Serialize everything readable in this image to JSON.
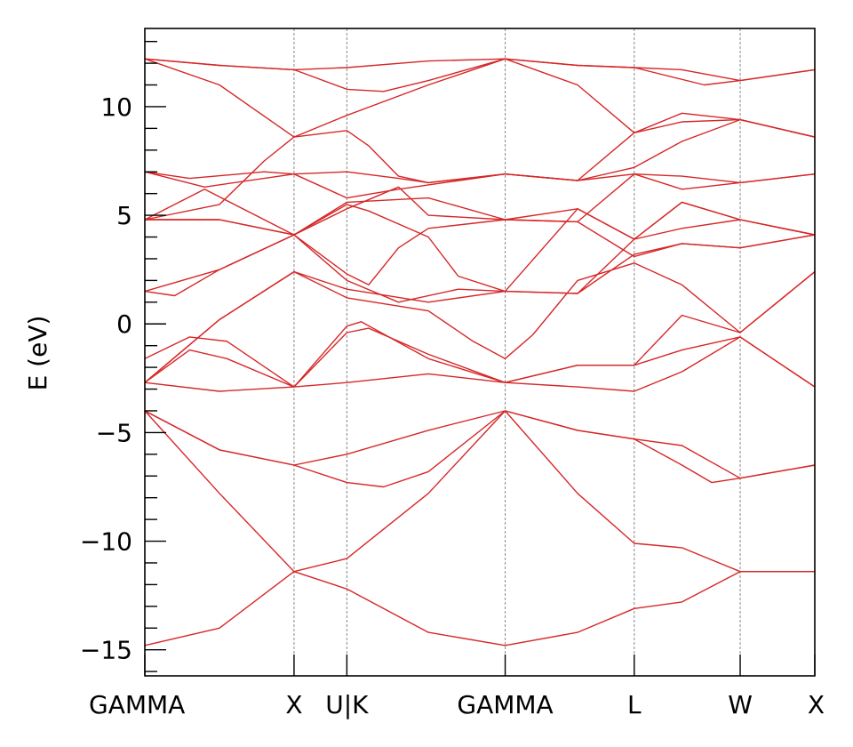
{
  "chart_data": {
    "type": "line",
    "title": "",
    "xlabel": "",
    "ylabel": "E (eV)",
    "ylim": [
      -16.2,
      13.6
    ],
    "grid": false,
    "legend": "none",
    "line_color": "#d62728",
    "kpath": [
      "GAMMA",
      "X",
      "U|K",
      "GAMMA",
      "L",
      "W",
      "X"
    ],
    "kpath_positions": [
      0,
      1,
      1.354,
      2.415,
      3.28,
      3.99,
      4.49
    ],
    "yticks_major": [
      -15,
      -10,
      -5,
      0,
      5,
      10
    ],
    "ytick_labels": [
      "−15",
      "−10",
      "−5",
      "0",
      "5",
      "10"
    ],
    "bands": [
      {
        "name": "band-1",
        "points": [
          [
            0,
            -14.8
          ],
          [
            0.5,
            -14.0
          ],
          [
            1.0,
            -11.4
          ],
          [
            1.354,
            -12.2
          ],
          [
            1.9,
            -14.2
          ],
          [
            2.415,
            -14.8
          ],
          [
            2.9,
            -14.2
          ],
          [
            3.28,
            -13.1
          ],
          [
            3.6,
            -12.8
          ],
          [
            3.99,
            -11.4
          ],
          [
            4.49,
            -11.4
          ]
        ]
      },
      {
        "name": "band-2",
        "points": [
          [
            0,
            -4.0
          ],
          [
            0.5,
            -7.8
          ],
          [
            1.0,
            -11.4
          ],
          [
            1.354,
            -10.8
          ],
          [
            1.9,
            -7.8
          ],
          [
            2.415,
            -4.0
          ],
          [
            2.9,
            -7.8
          ],
          [
            3.28,
            -10.1
          ],
          [
            3.6,
            -10.3
          ],
          [
            3.99,
            -11.4
          ],
          [
            4.49,
            -11.4
          ]
        ]
      },
      {
        "name": "band-3",
        "points": [
          [
            0,
            -4.0
          ],
          [
            0.5,
            -5.8
          ],
          [
            1.0,
            -6.5
          ],
          [
            1.354,
            -6.0
          ],
          [
            1.9,
            -4.9
          ],
          [
            2.415,
            -4.0
          ],
          [
            2.9,
            -4.9
          ],
          [
            3.28,
            -5.3
          ],
          [
            3.6,
            -5.6
          ],
          [
            3.99,
            -7.1
          ],
          [
            4.49,
            -6.5
          ]
        ]
      },
      {
        "name": "band-4",
        "points": [
          [
            0,
            -4.0
          ],
          [
            0.5,
            -5.8
          ],
          [
            1.0,
            -6.5
          ],
          [
            1.354,
            -7.3
          ],
          [
            1.6,
            -7.5
          ],
          [
            1.9,
            -6.8
          ],
          [
            2.415,
            -4.0
          ],
          [
            2.9,
            -4.9
          ],
          [
            3.28,
            -5.3
          ],
          [
            3.6,
            -6.5
          ],
          [
            3.8,
            -7.3
          ],
          [
            3.99,
            -7.1
          ],
          [
            4.49,
            -6.5
          ]
        ]
      },
      {
        "name": "band-5",
        "points": [
          [
            0,
            -2.7
          ],
          [
            0.5,
            -3.1
          ],
          [
            1.0,
            -2.9
          ],
          [
            1.354,
            -2.7
          ],
          [
            1.9,
            -2.3
          ],
          [
            2.415,
            -2.7
          ],
          [
            2.9,
            -2.9
          ],
          [
            3.28,
            -3.1
          ],
          [
            3.6,
            -2.2
          ],
          [
            3.99,
            -0.6
          ],
          [
            4.49,
            -2.9
          ]
        ]
      },
      {
        "name": "band-6",
        "points": [
          [
            0,
            -2.7
          ],
          [
            0.3,
            -1.2
          ],
          [
            0.55,
            -1.6
          ],
          [
            1.0,
            -2.9
          ],
          [
            1.354,
            -0.1
          ],
          [
            1.45,
            0.1
          ],
          [
            1.9,
            -1.6
          ],
          [
            2.415,
            -2.7
          ],
          [
            2.9,
            -1.9
          ],
          [
            3.28,
            -1.9
          ],
          [
            3.6,
            -1.2
          ],
          [
            3.99,
            -0.6
          ],
          [
            4.49,
            -2.9
          ]
        ]
      },
      {
        "name": "band-7",
        "points": [
          [
            0,
            -1.6
          ],
          [
            0.3,
            -0.6
          ],
          [
            0.55,
            -0.8
          ],
          [
            1.0,
            -2.9
          ],
          [
            1.354,
            -0.4
          ],
          [
            1.5,
            -0.2
          ],
          [
            1.9,
            -1.4
          ],
          [
            2.415,
            -2.7
          ],
          [
            2.9,
            -1.9
          ],
          [
            3.28,
            -1.9
          ],
          [
            3.6,
            0.4
          ],
          [
            3.99,
            -0.4
          ],
          [
            4.49,
            2.4
          ]
        ]
      },
      {
        "name": "band-8",
        "points": [
          [
            0,
            -2.7
          ],
          [
            0.5,
            0.2
          ],
          [
            1.0,
            2.4
          ],
          [
            1.354,
            1.2
          ],
          [
            1.9,
            0.6
          ],
          [
            2.2,
            -0.8
          ],
          [
            2.415,
            -1.6
          ],
          [
            2.6,
            -0.5
          ],
          [
            2.9,
            2.0
          ],
          [
            3.28,
            2.8
          ],
          [
            3.6,
            1.8
          ],
          [
            3.99,
            -0.4
          ],
          [
            4.49,
            2.4
          ]
        ]
      },
      {
        "name": "band-9",
        "points": [
          [
            0,
            -2.7
          ],
          [
            0.5,
            0.2
          ],
          [
            1.0,
            2.4
          ],
          [
            1.354,
            1.6
          ],
          [
            1.9,
            1.0
          ],
          [
            2.415,
            1.5
          ],
          [
            2.9,
            1.4
          ],
          [
            3.28,
            3.2
          ],
          [
            3.6,
            3.7
          ],
          [
            3.99,
            3.5
          ],
          [
            4.49,
            4.1
          ]
        ]
      },
      {
        "name": "band-10",
        "points": [
          [
            0,
            1.5
          ],
          [
            0.2,
            1.3
          ],
          [
            0.5,
            2.5
          ],
          [
            1.0,
            4.1
          ],
          [
            1.354,
            2.3
          ],
          [
            1.5,
            1.8
          ],
          [
            1.7,
            3.5
          ],
          [
            1.9,
            4.4
          ],
          [
            2.415,
            4.8
          ],
          [
            2.9,
            4.7
          ],
          [
            3.28,
            3.1
          ],
          [
            3.6,
            3.7
          ],
          [
            3.99,
            3.5
          ],
          [
            4.49,
            4.1
          ]
        ]
      },
      {
        "name": "band-11",
        "points": [
          [
            0,
            1.5
          ],
          [
            0.5,
            2.5
          ],
          [
            1.0,
            4.1
          ],
          [
            1.354,
            2.0
          ],
          [
            1.7,
            1.0
          ],
          [
            2.1,
            1.6
          ],
          [
            2.415,
            1.5
          ],
          [
            2.9,
            1.4
          ],
          [
            3.28,
            3.9
          ],
          [
            3.6,
            4.4
          ],
          [
            3.99,
            4.8
          ],
          [
            4.49,
            4.1
          ]
        ]
      },
      {
        "name": "band-12",
        "points": [
          [
            0,
            4.8
          ],
          [
            0.5,
            4.8
          ],
          [
            1.0,
            4.1
          ],
          [
            1.354,
            5.5
          ],
          [
            1.5,
            5.2
          ],
          [
            1.9,
            4.0
          ],
          [
            2.1,
            2.2
          ],
          [
            2.415,
            1.5
          ],
          [
            2.9,
            5.3
          ],
          [
            3.28,
            3.9
          ],
          [
            3.6,
            5.6
          ],
          [
            3.99,
            4.8
          ],
          [
            4.49,
            4.1
          ]
        ]
      },
      {
        "name": "band-13",
        "points": [
          [
            0,
            4.8
          ],
          [
            0.5,
            4.8
          ],
          [
            1.0,
            4.1
          ],
          [
            1.354,
            5.6
          ],
          [
            1.9,
            5.8
          ],
          [
            2.415,
            4.8
          ],
          [
            2.9,
            5.3
          ],
          [
            3.28,
            3.9
          ],
          [
            3.6,
            5.6
          ],
          [
            3.99,
            4.8
          ],
          [
            4.49,
            4.1
          ]
        ]
      },
      {
        "name": "band-14",
        "points": [
          [
            0,
            4.8
          ],
          [
            0.4,
            6.2
          ],
          [
            1.0,
            4.1
          ],
          [
            1.354,
            5.3
          ],
          [
            1.7,
            6.3
          ],
          [
            1.9,
            5.0
          ],
          [
            2.415,
            4.8
          ],
          [
            2.9,
            4.7
          ],
          [
            3.28,
            6.9
          ],
          [
            3.6,
            6.8
          ],
          [
            3.99,
            6.5
          ],
          [
            4.49,
            6.9
          ]
        ]
      },
      {
        "name": "band-15",
        "points": [
          [
            0,
            7.0
          ],
          [
            0.4,
            6.3
          ],
          [
            1.0,
            6.9
          ],
          [
            1.354,
            5.8
          ],
          [
            1.7,
            6.2
          ],
          [
            1.9,
            6.4
          ],
          [
            2.415,
            6.9
          ],
          [
            2.9,
            6.6
          ],
          [
            3.28,
            6.9
          ],
          [
            3.6,
            6.2
          ],
          [
            3.99,
            6.5
          ],
          [
            4.49,
            6.9
          ]
        ]
      },
      {
        "name": "band-16",
        "points": [
          [
            0,
            7.0
          ],
          [
            0.3,
            6.7
          ],
          [
            0.8,
            7.0
          ],
          [
            1.0,
            6.9
          ],
          [
            1.354,
            7.0
          ],
          [
            1.7,
            6.7
          ],
          [
            1.9,
            6.5
          ],
          [
            2.415,
            6.9
          ],
          [
            2.9,
            6.6
          ],
          [
            3.28,
            7.2
          ],
          [
            3.6,
            8.4
          ],
          [
            3.99,
            9.4
          ],
          [
            4.49,
            8.6
          ]
        ]
      },
      {
        "name": "band-17",
        "points": [
          [
            0,
            4.8
          ],
          [
            0.5,
            5.5
          ],
          [
            0.8,
            7.5
          ],
          [
            1.0,
            8.6
          ],
          [
            1.354,
            8.9
          ],
          [
            1.5,
            8.2
          ],
          [
            1.7,
            6.8
          ],
          [
            1.9,
            6.5
          ],
          [
            2.415,
            6.9
          ],
          [
            2.9,
            6.6
          ],
          [
            3.28,
            8.8
          ],
          [
            3.6,
            9.3
          ],
          [
            3.99,
            9.4
          ],
          [
            4.49,
            8.6
          ]
        ]
      },
      {
        "name": "band-18",
        "points": [
          [
            0,
            12.2
          ],
          [
            0.5,
            11.0
          ],
          [
            1.0,
            8.6
          ],
          [
            1.354,
            9.6
          ],
          [
            1.9,
            11.0
          ],
          [
            2.415,
            12.2
          ],
          [
            2.9,
            11.0
          ],
          [
            3.28,
            8.8
          ],
          [
            3.6,
            9.7
          ],
          [
            3.99,
            9.4
          ],
          [
            4.49,
            8.6
          ]
        ]
      },
      {
        "name": "band-19",
        "points": [
          [
            0,
            12.2
          ],
          [
            0.5,
            11.9
          ],
          [
            1.0,
            11.7
          ],
          [
            1.354,
            10.8
          ],
          [
            1.6,
            10.7
          ],
          [
            1.9,
            11.2
          ],
          [
            2.415,
            12.2
          ],
          [
            2.9,
            11.9
          ],
          [
            3.28,
            11.8
          ],
          [
            3.75,
            11.0
          ],
          [
            3.99,
            11.2
          ],
          [
            4.49,
            11.7
          ]
        ]
      },
      {
        "name": "band-20",
        "points": [
          [
            0,
            12.2
          ],
          [
            0.5,
            11.9
          ],
          [
            1.0,
            11.7
          ],
          [
            1.354,
            11.8
          ],
          [
            1.9,
            12.1
          ],
          [
            2.415,
            12.2
          ],
          [
            2.9,
            11.9
          ],
          [
            3.28,
            11.8
          ],
          [
            3.6,
            11.7
          ],
          [
            3.99,
            11.2
          ],
          [
            4.49,
            11.7
          ]
        ]
      }
    ]
  }
}
